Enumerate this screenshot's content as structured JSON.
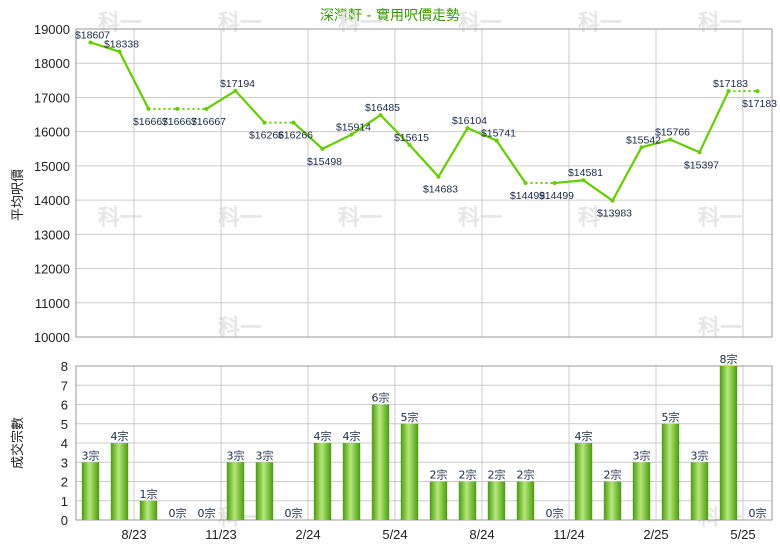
{
  "title": "深灣軒 - 實用呎價走勢",
  "watermark": "科一",
  "colors": {
    "line": "#66cc00",
    "bar_light": "#b5e87a",
    "bar_dark": "#4a9a10",
    "grid": "#cccccc",
    "title": "#339900"
  },
  "chart_data": [
    {
      "type": "line",
      "ylabel": "平均呎價",
      "ylim": [
        10000,
        19000
      ],
      "yticks": [
        10000,
        11000,
        12000,
        13000,
        14000,
        15000,
        16000,
        17000,
        18000,
        19000
      ],
      "points": [
        {
          "i": 0,
          "v": 18607,
          "label": "$18607",
          "interp": false
        },
        {
          "i": 1,
          "v": 18338,
          "label": "$18338",
          "interp": false
        },
        {
          "i": 2,
          "v": 16667,
          "label": "$16667",
          "interp": false
        },
        {
          "i": 3,
          "v": 16667,
          "label": "$16667",
          "interp": true
        },
        {
          "i": 4,
          "v": 16667,
          "label": "$16667",
          "interp": true
        },
        {
          "i": 5,
          "v": 17194,
          "label": "$17194",
          "interp": false
        },
        {
          "i": 6,
          "v": 16266,
          "label": "$16266",
          "interp": false
        },
        {
          "i": 7,
          "v": 16266,
          "label": "$16266",
          "interp": true
        },
        {
          "i": 8,
          "v": 15498,
          "label": "$15498",
          "interp": false
        },
        {
          "i": 9,
          "v": 15914,
          "label": "$15914",
          "interp": false
        },
        {
          "i": 10,
          "v": 16485,
          "label": "$16485",
          "interp": false
        },
        {
          "i": 11,
          "v": 15615,
          "label": "$15615",
          "interp": false
        },
        {
          "i": 12,
          "v": 14683,
          "label": "$14683",
          "interp": false
        },
        {
          "i": 13,
          "v": 16104,
          "label": "$16104",
          "interp": false
        },
        {
          "i": 14,
          "v": 15741,
          "label": "$15741",
          "interp": false
        },
        {
          "i": 15,
          "v": 14499,
          "label": "$14499",
          "interp": false
        },
        {
          "i": 16,
          "v": 14499,
          "label": "$14499",
          "interp": true
        },
        {
          "i": 17,
          "v": 14581,
          "label": "$14581",
          "interp": false
        },
        {
          "i": 18,
          "v": 13983,
          "label": "$13983",
          "interp": false
        },
        {
          "i": 19,
          "v": 15542,
          "label": "$15542",
          "interp": false
        },
        {
          "i": 20,
          "v": 15766,
          "label": "$15766",
          "interp": false
        },
        {
          "i": 21,
          "v": 15397,
          "label": "$15397",
          "interp": false
        },
        {
          "i": 22,
          "v": 17183,
          "label": "$17183",
          "interp": false
        },
        {
          "i": 23,
          "v": 17183,
          "label": "$17183",
          "interp": true
        }
      ]
    },
    {
      "type": "bar",
      "ylabel": "成交宗數",
      "ylim": [
        0,
        8
      ],
      "yticks": [
        0,
        1,
        2,
        3,
        4,
        5,
        6,
        7,
        8
      ],
      "values": [
        3,
        4,
        1,
        0,
        0,
        3,
        3,
        0,
        4,
        4,
        6,
        5,
        2,
        2,
        2,
        2,
        0,
        4,
        2,
        3,
        5,
        3,
        8,
        0
      ],
      "value_suffix": "宗"
    }
  ],
  "x_axis": {
    "n": 24,
    "ticks": [
      {
        "after": 1,
        "label": "8/23"
      },
      {
        "after": 4,
        "label": "11/23"
      },
      {
        "after": 7,
        "label": "2/24"
      },
      {
        "after": 10,
        "label": "5/24"
      },
      {
        "after": 13,
        "label": "8/24"
      },
      {
        "after": 16,
        "label": "11/24"
      },
      {
        "after": 19,
        "label": "2/25"
      },
      {
        "after": 22,
        "label": "5/25"
      }
    ]
  }
}
